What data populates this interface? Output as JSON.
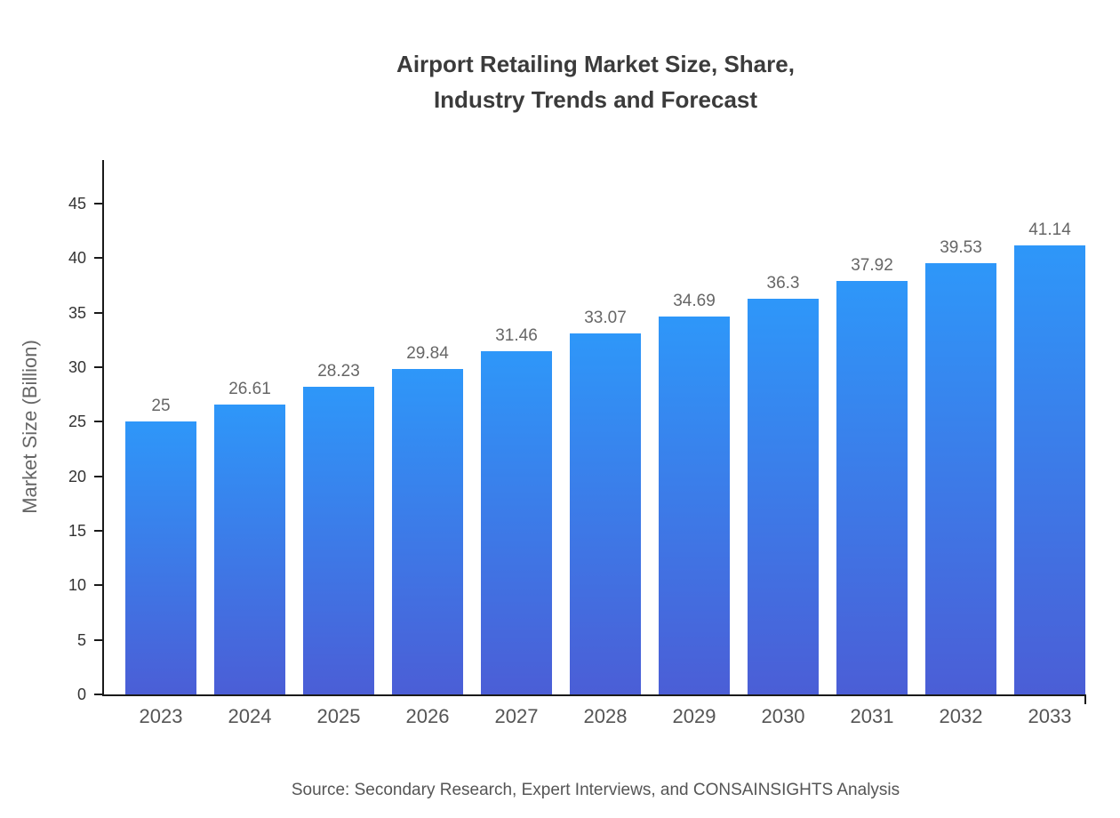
{
  "chart_data": {
    "type": "bar",
    "title": "Airport Retailing Market Size, Share, Industry Trends and Forecast",
    "title_lines": [
      "Airport Retailing Market Size, Share,",
      "Industry Trends and Forecast"
    ],
    "xlabel": "",
    "ylabel": "Market Size (Billion)",
    "categories": [
      "2023",
      "2024",
      "2025",
      "2026",
      "2027",
      "2028",
      "2029",
      "2030",
      "2031",
      "2032",
      "2033"
    ],
    "values": [
      25,
      26.61,
      28.23,
      29.84,
      31.46,
      33.07,
      34.69,
      36.3,
      37.92,
      39.53,
      41.14
    ],
    "value_labels": [
      "25",
      "26.61",
      "28.23",
      "29.84",
      "31.46",
      "33.07",
      "34.69",
      "36.3",
      "37.92",
      "39.53",
      "41.14"
    ],
    "yticks": [
      0,
      5,
      10,
      15,
      20,
      25,
      30,
      35,
      40,
      45
    ],
    "ylim": [
      0,
      49
    ],
    "grid": false,
    "legend": "none",
    "source_note": "Source: Secondary Research, Expert Interviews, and CONSAINSIGHTS Analysis",
    "colors": {
      "bar_top": "#2E97F9",
      "bar_bottom": "#4B5ED6",
      "axis": "#1a1a1a",
      "title_text": "#3b3b3b",
      "value_text": "#666666"
    }
  }
}
